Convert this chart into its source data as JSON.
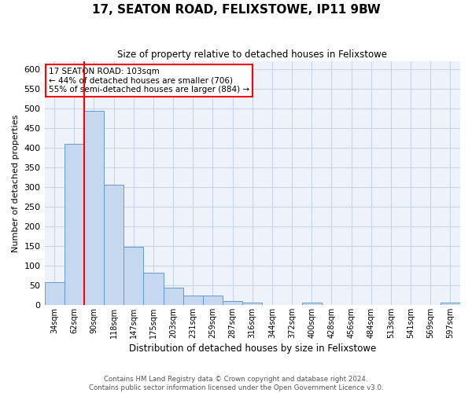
{
  "title": "17, SEATON ROAD, FELIXSTOWE, IP11 9BW",
  "subtitle": "Size of property relative to detached houses in Felixstowe",
  "xlabel": "Distribution of detached houses by size in Felixstowe",
  "ylabel": "Number of detached properties",
  "bar_color": "#c5d8ef",
  "bar_edge_color": "#6699cc",
  "grid_color": "#c8d4e8",
  "background_color": "#eef2fa",
  "categories": [
    "34sqm",
    "62sqm",
    "90sqm",
    "118sqm",
    "147sqm",
    "175sqm",
    "203sqm",
    "231sqm",
    "259sqm",
    "287sqm",
    "316sqm",
    "344sqm",
    "372sqm",
    "400sqm",
    "428sqm",
    "456sqm",
    "484sqm",
    "513sqm",
    "541sqm",
    "569sqm",
    "597sqm"
  ],
  "values": [
    57,
    411,
    494,
    305,
    148,
    81,
    44,
    24,
    24,
    10,
    6,
    0,
    0,
    5,
    0,
    0,
    0,
    0,
    0,
    0,
    5
  ],
  "ylim": [
    0,
    620
  ],
  "yticks": [
    0,
    50,
    100,
    150,
    200,
    250,
    300,
    350,
    400,
    450,
    500,
    550,
    600
  ],
  "red_line_bar_index": 2,
  "annotation_title": "17 SEATON ROAD: 103sqm",
  "annotation_line1": "← 44% of detached houses are smaller (706)",
  "annotation_line2": "55% of semi-detached houses are larger (884) →",
  "footer1": "Contains HM Land Registry data © Crown copyright and database right 2024.",
  "footer2": "Contains public sector information licensed under the Open Government Licence v3.0."
}
